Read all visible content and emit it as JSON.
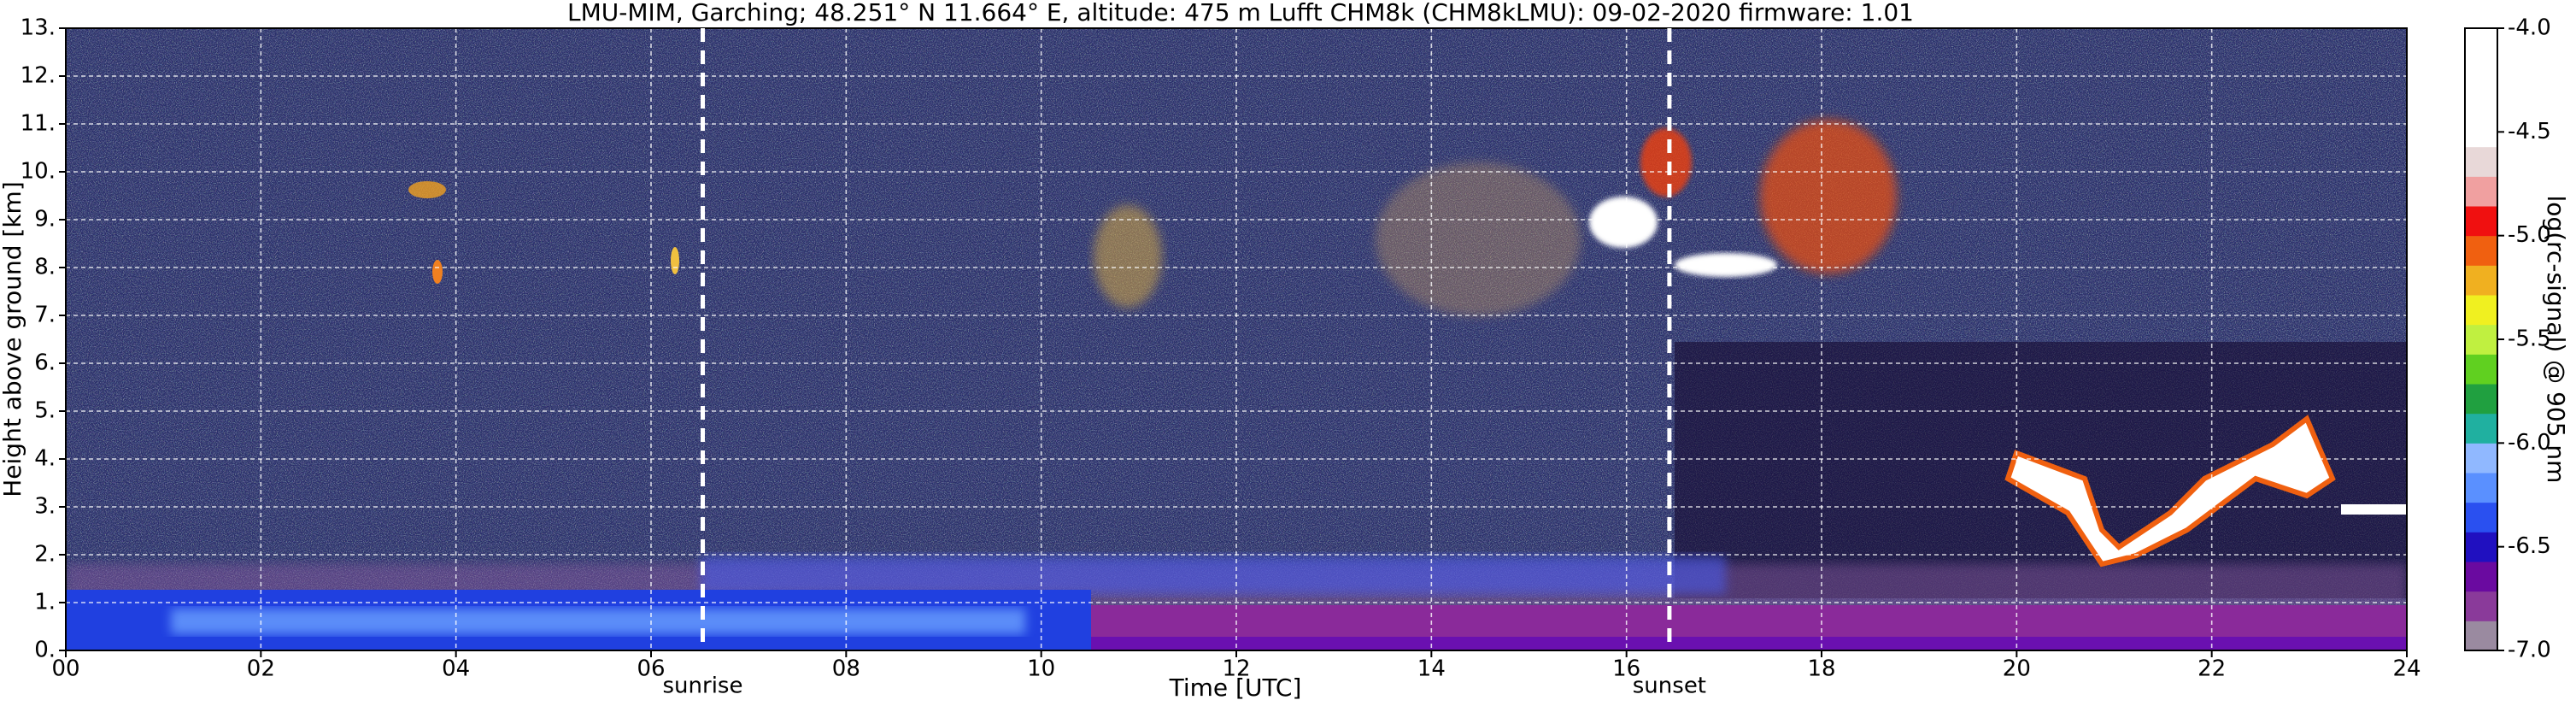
{
  "chart_data": {
    "type": "heatmap",
    "title": "LMU-MIM, Garching; 48.251° N 11.664° E, altitude: 475 m    Lufft CHM8k (CHM8kLMU): 09-02-2020    firmware: 1.01",
    "xlabel": "Time [UTC]",
    "ylabel": "Height above ground [km]",
    "xlim": [
      0,
      24
    ],
    "xticks": [
      {
        "value": 0,
        "label": "00"
      },
      {
        "value": 2,
        "label": "02"
      },
      {
        "value": 4,
        "label": "04"
      },
      {
        "value": 6,
        "label": "06"
      },
      {
        "value": 8,
        "label": "08"
      },
      10,
      12,
      14,
      16,
      18,
      20,
      22,
      24
    ],
    "ylim": [
      0,
      13
    ],
    "yticks": [
      {
        "value": 0,
        "label": "0."
      },
      {
        "value": 1,
        "label": "1."
      },
      {
        "value": 2,
        "label": "2."
      },
      {
        "value": 3,
        "label": "3."
      },
      {
        "value": 4,
        "label": "4."
      },
      {
        "value": 5,
        "label": "5."
      },
      {
        "value": 6,
        "label": "6."
      },
      {
        "value": 7,
        "label": "7."
      },
      {
        "value": 8,
        "label": "8."
      },
      {
        "value": 9,
        "label": "9."
      },
      {
        "value": 10,
        "label": "10."
      },
      {
        "value": 11,
        "label": "11."
      },
      {
        "value": 12,
        "label": "12."
      },
      {
        "value": 13,
        "label": "13."
      }
    ],
    "grid": true,
    "annotations": [
      {
        "text": "sunrise",
        "x": 6.53
      },
      {
        "text": "sunset",
        "x": 16.44
      }
    ],
    "colorbar": {
      "label": "log(rc-signal) @ 905 nm",
      "lim": [
        -7,
        -4
      ],
      "ticks": [
        {
          "value": -4,
          "label": "-4.0"
        },
        -4.5,
        {
          "value": -5,
          "label": "-5.0"
        },
        -5.5,
        {
          "value": -6,
          "label": "-6.0"
        },
        -6.5,
        {
          "value": -7,
          "label": "-7.0"
        }
      ],
      "colors": [
        "#9a8aa0",
        "#8a3a9a",
        "#6a0aa0",
        "#2010c0",
        "#2a50f0",
        "#5a90ff",
        "#90b8ff",
        "#20b0a0",
        "#20a040",
        "#60d020",
        "#c0f040",
        "#f0f020",
        "#f0b020",
        "#f06010",
        "#f01010",
        "#f0a0a0",
        "#e8d8d8",
        "#ffffff",
        "#ffffff",
        "#ffffff",
        "#ffffff"
      ]
    }
  }
}
